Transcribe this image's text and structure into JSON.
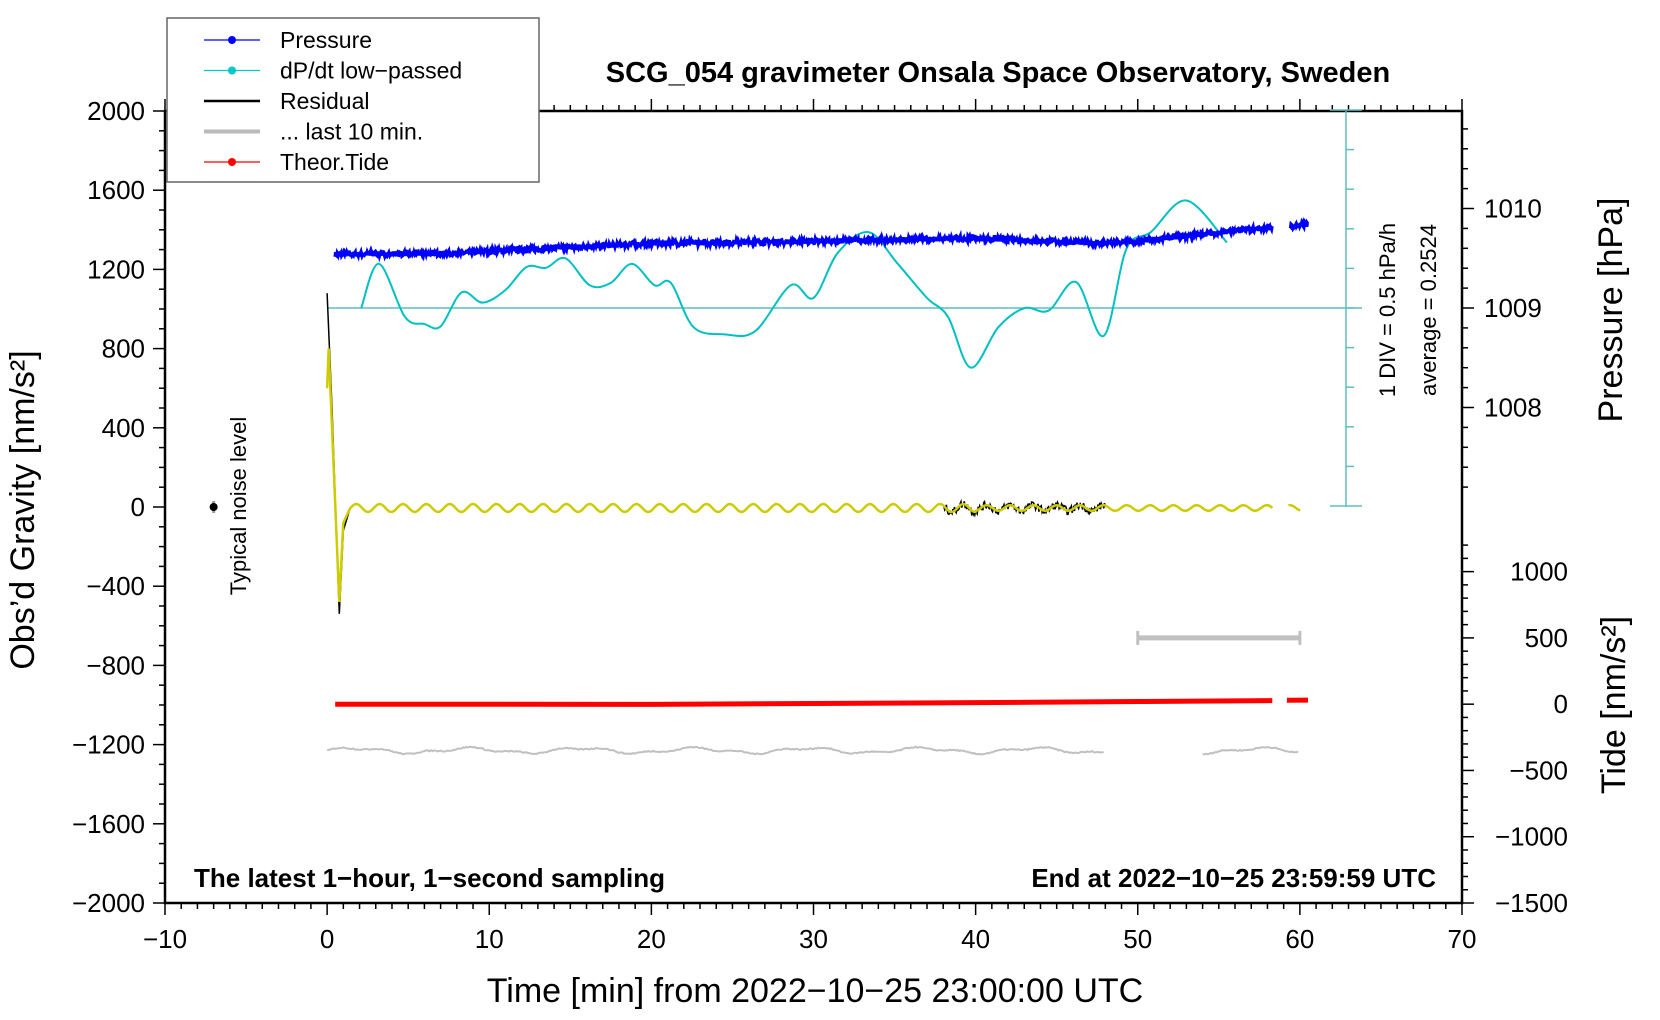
{
  "chart_data": {
    "type": "line",
    "title": "SCG_054 gravimeter Onsala Space Observatory, Sweden",
    "xlabel": "Time [min] from 2022−10−25 23:00:00 UTC",
    "ylabel": "Obs’d Gravity [nm/s²]",
    "ylabel_pressure": "Pressure [hPa]",
    "ylabel_tide": "Tide [nm/s²]",
    "xlim": [
      -10,
      70
    ],
    "ylim": [
      -2000,
      2000
    ],
    "pressure_lim": [
      1003.02,
      1010.98
    ],
    "tide_lim": [
      -1500,
      4475
    ],
    "x_ticks": [
      "−10",
      "0",
      "10",
      "20",
      "30",
      "40",
      "50",
      "60",
      "70"
    ],
    "x_tick_values": [
      -10,
      0,
      10,
      20,
      30,
      40,
      50,
      60,
      70
    ],
    "y_ticks": [
      "2000",
      "1600",
      "1200",
      "800",
      "400",
      "0",
      "−400",
      "−800",
      "−1200",
      "−1600",
      "−2000"
    ],
    "y_tick_values": [
      2000,
      1600,
      1200,
      800,
      400,
      0,
      -400,
      -800,
      -1200,
      -1600,
      -2000
    ],
    "pressure_ticks": [
      "1010",
      "1009",
      "1008"
    ],
    "pressure_tick_values": [
      1010,
      1009,
      1008
    ],
    "tide_ticks": [
      "1000",
      "500",
      "0",
      "−500",
      "−1000",
      "−1500"
    ],
    "tide_tick_values": [
      1000,
      500,
      0,
      -500,
      -1000,
      -1500
    ],
    "grid": false,
    "legend": {
      "placement": "top-left",
      "entries": [
        {
          "label": "Pressure",
          "color": "#0000ff",
          "marker": true
        },
        {
          "label": "dP/dt low−passed",
          "color": "#00c8c8",
          "marker": true
        },
        {
          "label": "Residual",
          "color": "#000000",
          "marker": false
        },
        {
          "label": "... last 10 min.",
          "color": "#bbbbbb",
          "marker": false
        },
        {
          "label": "Theor.Tide",
          "color": "#ff0000",
          "marker": true
        }
      ]
    },
    "annotations": {
      "left_bottom": "The latest 1−hour, 1−second sampling",
      "right_bottom": "End at 2022−10−25 23:59:59 UTC",
      "dpdt_scale": "1 DIV = 0.5 hPa/h",
      "dpdt_average": "average = 0.2524",
      "noise_label": "Typical noise level"
    },
    "dpdt_average_value": 0.2524,
    "dpdt_div_hpa_per_h": 0.5,
    "dpdt_center_pressure": 1009,
    "series": {
      "pressure": {
        "unit": "hPa",
        "segments": [
          [
            [
              0.5,
              1009.54
            ],
            [
              8,
              1009.55
            ],
            [
              10,
              1009.57
            ],
            [
              20,
              1009.65
            ],
            [
              30,
              1009.67
            ],
            [
              40,
              1009.7
            ],
            [
              48,
              1009.65
            ],
            [
              50,
              1009.67
            ],
            [
              55,
              1009.76
            ],
            [
              58.3,
              1009.81
            ]
          ],
          [
            [
              59.4,
              1009.82
            ],
            [
              60.5,
              1009.84
            ]
          ]
        ]
      },
      "dpdt": {
        "unit": "hPa/h",
        "points": [
          [
            2.1,
            0.25
          ],
          [
            3.2,
            0.81
          ],
          [
            4.8,
            0.14
          ],
          [
            6,
            0.05
          ],
          [
            7,
            0.02
          ],
          [
            8.3,
            0.45
          ],
          [
            9.6,
            0.32
          ],
          [
            11,
            0.48
          ],
          [
            12.3,
            0.77
          ],
          [
            13.5,
            0.76
          ],
          [
            14.7,
            0.88
          ],
          [
            16.2,
            0.54
          ],
          [
            17.5,
            0.57
          ],
          [
            18.8,
            0.81
          ],
          [
            20.2,
            0.54
          ],
          [
            21.2,
            0.57
          ],
          [
            22.6,
            0.01
          ],
          [
            24.5,
            -0.08
          ],
          [
            26.4,
            -0.04
          ],
          [
            28.6,
            0.54
          ],
          [
            30,
            0.38
          ],
          [
            31.5,
            0.95
          ],
          [
            33.4,
            1.21
          ],
          [
            35.2,
            0.81
          ],
          [
            37,
            0.38
          ],
          [
            38.3,
            0.14
          ],
          [
            39.7,
            -0.5
          ],
          [
            41.4,
            0.01
          ],
          [
            43,
            0.25
          ],
          [
            44.5,
            0.22
          ],
          [
            46.2,
            0.58
          ],
          [
            47.9,
            -0.1
          ],
          [
            49.3,
            1.0
          ],
          [
            50.8,
            1.21
          ],
          [
            53,
            1.61
          ],
          [
            55.5,
            1.08
          ]
        ]
      },
      "residual": {
        "unit": "nm/s²",
        "transient": [
          [
            0,
            1080
          ],
          [
            0.3,
            500
          ],
          [
            0.75,
            -540
          ],
          [
            1.0,
            -120
          ],
          [
            1.4,
            -10
          ]
        ],
        "oscillation_amplitude": 20,
        "oscillation_period_min": 1.44,
        "end_min": 60
      },
      "filtered": {
        "unit": "nm/s²",
        "transient": [
          [
            0,
            600
          ],
          [
            0.1,
            800
          ],
          [
            0.75,
            -480
          ],
          [
            1.0,
            -80
          ],
          [
            1.4,
            -10
          ]
        ],
        "color": "#cccc00"
      },
      "last10": {
        "unit": "nm/s²",
        "level": -1230,
        "segments": [
          [
            0,
            48
          ],
          [
            54,
            60
          ]
        ]
      },
      "last10_bar": {
        "range_min": [
          50,
          60
        ],
        "tide_level": 500
      },
      "tide": {
        "unit": "nm/s²",
        "segments": [
          [
            [
              0.5,
              0
            ],
            [
              20,
              -2
            ],
            [
              30,
              5
            ],
            [
              40,
              12
            ],
            [
              50,
              20
            ],
            [
              58.3,
              27
            ]
          ],
          [
            [
              59.2,
              30
            ],
            [
              60.5,
              31
            ]
          ]
        ]
      },
      "noise_level": {
        "x": -7,
        "y": 0,
        "error": 30
      }
    }
  }
}
